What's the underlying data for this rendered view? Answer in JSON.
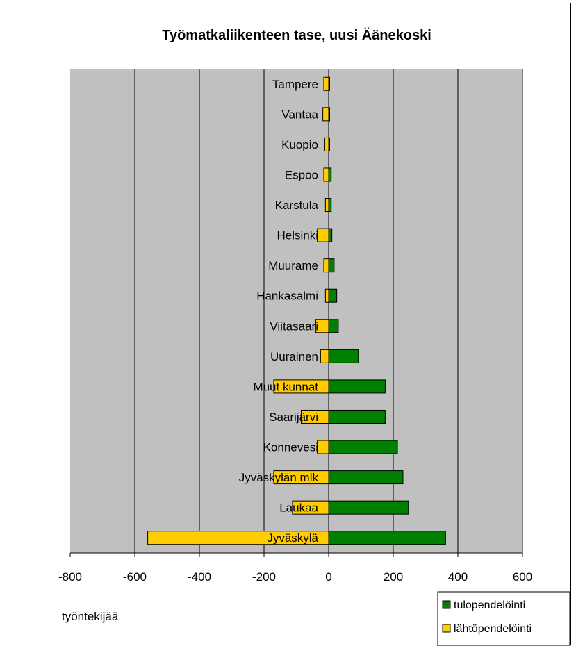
{
  "chart_data": {
    "type": "bar",
    "orientation": "horizontal",
    "title": "Työmatkaliikenteen tase, uusi Äänekoski",
    "xlabel": "työntekijää",
    "xlim": [
      -800,
      600
    ],
    "xticks": [
      -800,
      -600,
      -400,
      -200,
      0,
      200,
      400,
      600
    ],
    "grid": true,
    "legend_position": "bottom-right",
    "categories": [
      "Tampere",
      "Vantaa",
      "Kuopio",
      "Espoo",
      "Karstula",
      "Helsinki",
      "Muurame",
      "Hankasalmi",
      "Viitasaari",
      "Uurainen",
      "Muut kunnat",
      "Saarijärvi",
      "Konnevesi",
      "Jyväskylän mlk",
      "Laukaa",
      "Jyväskylä"
    ],
    "series": [
      {
        "name": "tulopendelöinti",
        "color": "#008000",
        "values": [
          1,
          2,
          3,
          8,
          8,
          10,
          17,
          25,
          30,
          92,
          175,
          175,
          213,
          230,
          247,
          362
        ]
      },
      {
        "name": "lähtöpendelöinti",
        "color": "#ffcc00",
        "values": [
          -15,
          -18,
          -12,
          -15,
          -10,
          -35,
          -15,
          -10,
          -40,
          -25,
          -170,
          -85,
          -35,
          -170,
          -112,
          -560
        ]
      }
    ]
  },
  "colors": {
    "plot_background": "#c0c0c0",
    "gridline": "#000000"
  }
}
